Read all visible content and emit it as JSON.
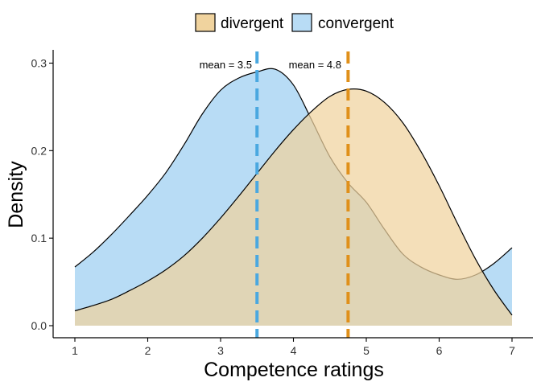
{
  "chart_data": {
    "type": "area",
    "xlabel": "Competence ratings",
    "ylabel": "Density",
    "xlim": [
      1,
      7
    ],
    "ylim": [
      0,
      0.3
    ],
    "x_ticks": [
      1,
      2,
      3,
      4,
      5,
      6,
      7
    ],
    "y_ticks": [
      "0.0",
      "0.1",
      "0.2",
      "0.3"
    ],
    "grid": false,
    "legend_position": "top",
    "series": [
      {
        "name": "divergent",
        "fill": "#f0d39e",
        "mean": 4.75,
        "mean_color": "#e0901a",
        "mean_label": "mean = 4.8",
        "x": [
          1.0,
          1.25,
          1.5,
          1.75,
          2.0,
          2.25,
          2.5,
          2.75,
          3.0,
          3.25,
          3.5,
          3.75,
          4.0,
          4.25,
          4.5,
          4.75,
          5.0,
          5.25,
          5.5,
          5.75,
          6.0,
          6.25,
          6.5,
          6.75,
          7.0
        ],
        "y": [
          0.017,
          0.023,
          0.03,
          0.04,
          0.051,
          0.064,
          0.08,
          0.1,
          0.123,
          0.148,
          0.174,
          0.2,
          0.224,
          0.245,
          0.262,
          0.27,
          0.268,
          0.255,
          0.232,
          0.199,
          0.16,
          0.117,
          0.076,
          0.041,
          0.012
        ]
      },
      {
        "name": "convergent",
        "fill": "#b8dcf5",
        "mean": 3.5,
        "mean_color": "#4aa8e0",
        "mean_label": "mean = 3.5",
        "x": [
          1.0,
          1.25,
          1.5,
          1.75,
          2.0,
          2.25,
          2.5,
          2.75,
          3.0,
          3.25,
          3.5,
          3.75,
          4.0,
          4.25,
          4.5,
          4.75,
          5.0,
          5.25,
          5.5,
          5.75,
          6.0,
          6.25,
          6.5,
          6.75,
          7.0
        ],
        "y": [
          0.067,
          0.084,
          0.104,
          0.126,
          0.149,
          0.175,
          0.207,
          0.242,
          0.269,
          0.283,
          0.29,
          0.293,
          0.275,
          0.235,
          0.193,
          0.163,
          0.141,
          0.11,
          0.082,
          0.067,
          0.058,
          0.053,
          0.058,
          0.071,
          0.089
        ]
      }
    ]
  }
}
